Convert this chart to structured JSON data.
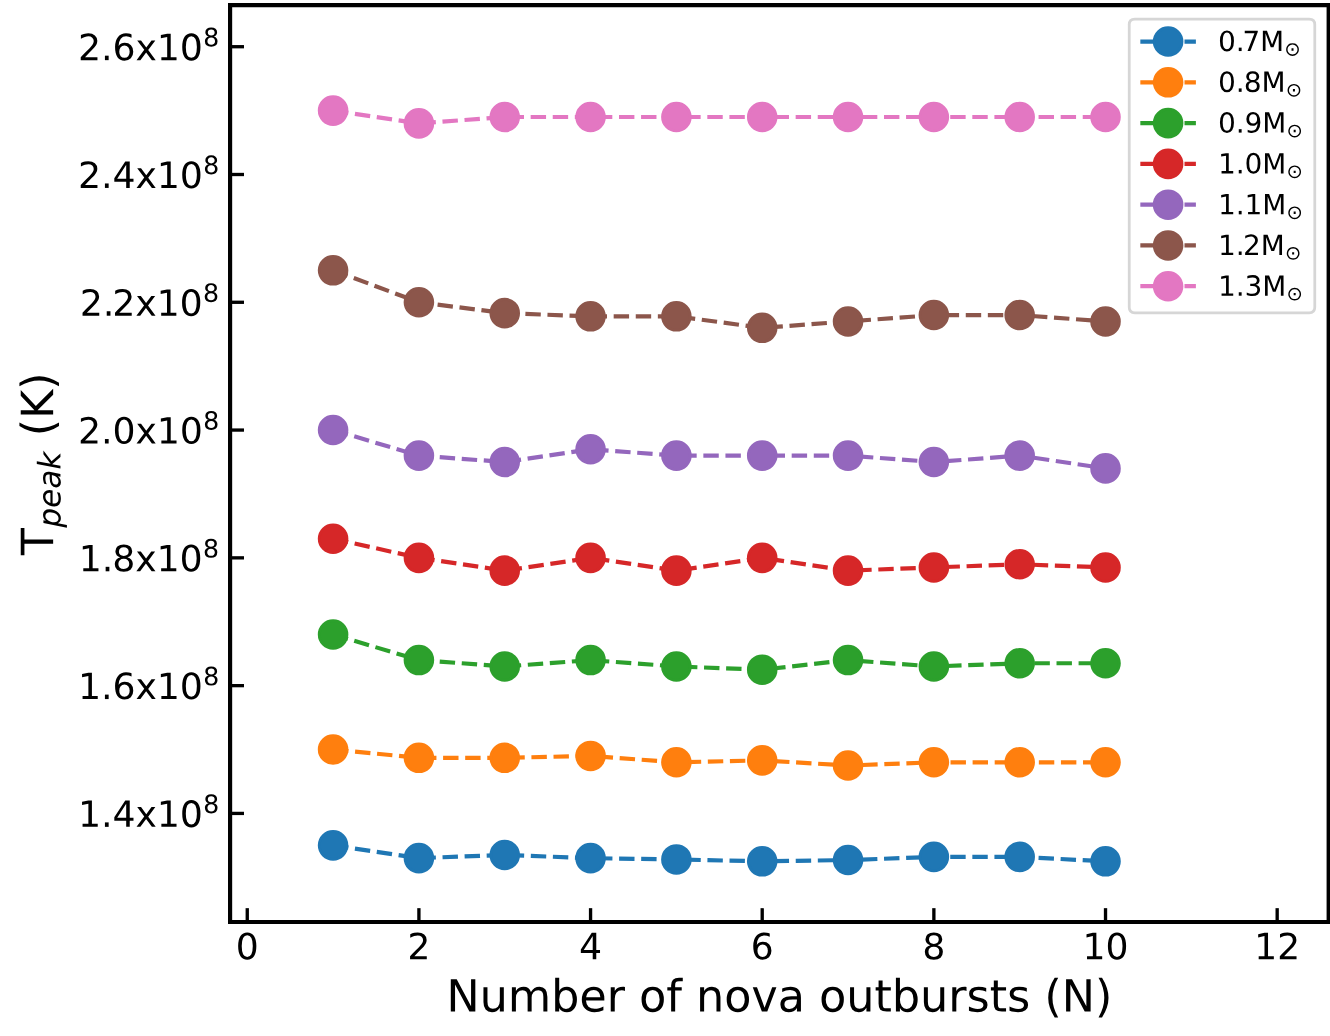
{
  "chart_data": {
    "type": "line",
    "xlabel": "Number of nova outbursts (N)",
    "ylabel": "T$_{peak}$ (K)",
    "x": [
      1,
      2,
      3,
      4,
      5,
      6,
      7,
      8,
      9,
      10
    ],
    "xlim": [
      -0.2,
      12.6
    ],
    "xticks": [
      0,
      2,
      4,
      6,
      8,
      10,
      12
    ],
    "ylim": [
      123000000,
      266500000
    ],
    "yticks": [
      {
        "value": 140000000,
        "label": "1.4x10$^{8}$"
      },
      {
        "value": 160000000,
        "label": "1.6x10$^{8}$"
      },
      {
        "value": 180000000,
        "label": "1.8x10$^{8}$"
      },
      {
        "value": 200000000,
        "label": "2.0x10$^{8}$"
      },
      {
        "value": 220000000,
        "label": "2.2x10$^{8}$"
      },
      {
        "value": 240000000,
        "label": "2.4x10$^{8}$"
      },
      {
        "value": 260000000,
        "label": "2.6x10$^{8}$"
      }
    ],
    "marker": "circle",
    "line_style": "dashed",
    "legend": "top right",
    "grid": false,
    "series": [
      {
        "name": "0.7M$_{⊙}$",
        "color": "#1f77b4",
        "values": [
          135000000,
          133000000,
          133500000,
          133000000,
          132800000,
          132500000,
          132700000,
          133200000,
          133200000,
          132500000
        ]
      },
      {
        "name": "0.8M$_{⊙}$",
        "color": "#ff7f0e",
        "values": [
          150000000,
          148700000,
          148700000,
          149000000,
          148000000,
          148300000,
          147500000,
          148000000,
          148000000,
          148000000
        ]
      },
      {
        "name": "0.9M$_{⊙}$",
        "color": "#2ca02c",
        "values": [
          168000000,
          164000000,
          163000000,
          164000000,
          163000000,
          162500000,
          164000000,
          163000000,
          163500000,
          163500000
        ]
      },
      {
        "name": "1.0M$_{⊙}$",
        "color": "#d62728",
        "values": [
          183000000,
          180000000,
          178000000,
          180000000,
          178000000,
          180000000,
          178000000,
          178500000,
          179000000,
          178500000
        ]
      },
      {
        "name": "1.1M$_{⊙}$",
        "color": "#9467bd",
        "values": [
          200000000,
          196000000,
          195000000,
          197000000,
          196000000,
          196000000,
          196000000,
          195000000,
          196000000,
          194000000
        ]
      },
      {
        "name": "1.2M$_{⊙}$",
        "color": "#8c564b",
        "values": [
          225000000,
          220000000,
          218300000,
          217800000,
          217800000,
          216000000,
          217000000,
          218000000,
          218000000,
          217000000
        ]
      },
      {
        "name": "1.3M$_{⊙}$",
        "color": "#e377c2",
        "values": [
          250000000,
          248000000,
          249000000,
          249000000,
          249000000,
          249000000,
          249000000,
          249000000,
          249000000,
          249000000
        ]
      }
    ]
  }
}
